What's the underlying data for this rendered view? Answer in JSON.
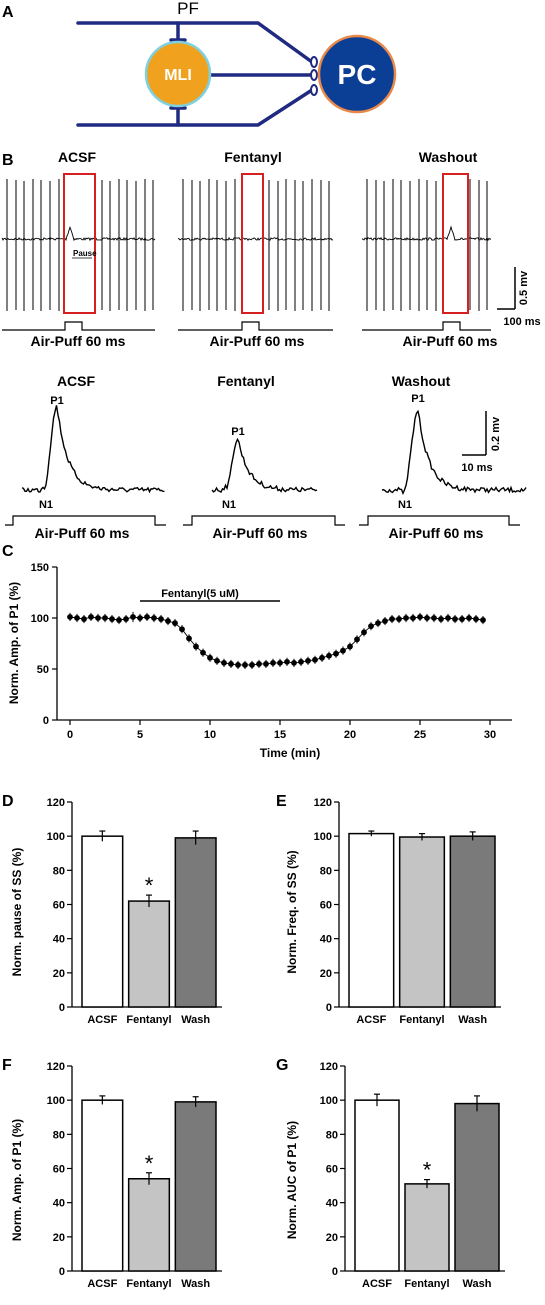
{
  "panels": {
    "a": "A",
    "b": "B",
    "c": "C",
    "d": "D",
    "e": "E",
    "f": "F",
    "g": "G"
  },
  "schematic": {
    "pf": "PF",
    "mli": "MLI",
    "pc": "PC",
    "colors": {
      "fiber": "#1f2a80",
      "mli_fill": "#f0a21f",
      "mli_edge": "#7fd1e0",
      "pc_fill": "#0b3f96",
      "pc_edge": "#e8894a"
    }
  },
  "traces": {
    "conditions": [
      "ACSF",
      "Fentanyl",
      "Washout"
    ],
    "pause": "Pause",
    "air_puff": "Air-Puff  60 ms",
    "scale_mv": "0.5 mv",
    "scale_ms": "100 ms",
    "p1": "P1",
    "n1": "N1",
    "scale2_mv": "0.2 mv",
    "scale2_ms": "10 ms",
    "highlight_color": "#d62020"
  },
  "chart_data": [
    {
      "panel": "C",
      "type": "scatter",
      "xlabel": "Time (min)",
      "ylabel": "Norm. Amp. of P1 (%)",
      "xlim": [
        0,
        30
      ],
      "ylim": [
        0,
        150
      ],
      "xticks": [
        "0",
        "5",
        "10",
        "15",
        "20",
        "25",
        "30"
      ],
      "yticks": [
        "0",
        "50",
        "100",
        "150"
      ],
      "bar_label": "Fentanyl(5 uM)",
      "drug_window": [
        5,
        15
      ],
      "x": [
        0,
        0.5,
        1,
        1.5,
        2,
        2.5,
        3,
        3.5,
        4,
        4.5,
        5,
        5.5,
        6,
        6.5,
        7,
        7.5,
        8,
        8.5,
        9,
        9.5,
        10,
        10.5,
        11,
        11.5,
        12,
        12.5,
        13,
        13.5,
        14,
        14.5,
        15,
        15.5,
        16,
        16.5,
        17,
        17.5,
        18,
        18.5,
        19,
        19.5,
        20,
        20.5,
        21,
        21.5,
        22,
        22.5,
        23,
        23.5,
        24,
        24.5,
        25,
        25.5,
        26,
        26.5,
        27,
        27.5,
        28,
        28.5,
        29,
        29.5
      ],
      "values": [
        101,
        100,
        99,
        101,
        100,
        100,
        99,
        98,
        99,
        101,
        100,
        101,
        100,
        99,
        97,
        95,
        89,
        80,
        72,
        66,
        61,
        58,
        56,
        55,
        54,
        54,
        54,
        55,
        55,
        56,
        56,
        57,
        56,
        57,
        58,
        59,
        61,
        63,
        65,
        68,
        72,
        79,
        86,
        92,
        95,
        97,
        99,
        99,
        100,
        100,
        101,
        100,
        100,
        99,
        100,
        99,
        99,
        100,
        99,
        98
      ],
      "errors": [
        4,
        4,
        4,
        4,
        4,
        4,
        4,
        4,
        4,
        5,
        4,
        4,
        4,
        4,
        4,
        4,
        4,
        4,
        4,
        4,
        4,
        4,
        4,
        4,
        4,
        4,
        4,
        4,
        4,
        4,
        4,
        4,
        4,
        4,
        4,
        4,
        4,
        4,
        4,
        4,
        4,
        4,
        4,
        4,
        4,
        4,
        4,
        4,
        4,
        4,
        4,
        4,
        4,
        4,
        4,
        4,
        4,
        4,
        4,
        4
      ]
    },
    {
      "panel": "D",
      "type": "bar",
      "categories": [
        "ACSF",
        "Fentanyl",
        "Wash"
      ],
      "values": [
        100,
        62,
        99
      ],
      "errors": [
        3,
        3.5,
        4
      ],
      "significant": [
        false,
        true,
        false
      ],
      "ylabel": "Norm. pause of SS (%)",
      "ylim": [
        0,
        120
      ],
      "yticks": [
        "0",
        "20",
        "40",
        "60",
        "80",
        "100",
        "120"
      ]
    },
    {
      "panel": "E",
      "type": "bar",
      "categories": [
        "ACSF",
        "Fentanyl",
        "Wash"
      ],
      "values": [
        101.5,
        99.5,
        100
      ],
      "errors": [
        1.5,
        2,
        2.5
      ],
      "significant": [
        false,
        false,
        false
      ],
      "ylabel": "Norm. Freq. of SS (%)",
      "ylim": [
        0,
        120
      ],
      "yticks": [
        "0",
        "20",
        "40",
        "60",
        "80",
        "100",
        "120"
      ]
    },
    {
      "panel": "F",
      "type": "bar",
      "categories": [
        "ACSF",
        "Fentanyl",
        "Wash"
      ],
      "values": [
        100,
        54,
        99
      ],
      "errors": [
        2.5,
        3.5,
        3
      ],
      "significant": [
        false,
        true,
        false
      ],
      "ylabel": "Norm. Amp. of P1 (%)",
      "ylim": [
        0,
        120
      ],
      "yticks": [
        "0",
        "20",
        "40",
        "60",
        "80",
        "100",
        "120"
      ]
    },
    {
      "panel": "G",
      "type": "bar",
      "categories": [
        "ACSF",
        "Fentanyl",
        "Wash"
      ],
      "values": [
        100,
        51,
        98
      ],
      "errors": [
        3.5,
        2.5,
        4.5
      ],
      "significant": [
        false,
        true,
        false
      ],
      "ylabel": "Norm. AUC of P1 (%)",
      "ylim": [
        0,
        120
      ],
      "yticks": [
        "0",
        "20",
        "40",
        "60",
        "80",
        "100",
        "120"
      ]
    }
  ],
  "bar_colors": [
    "#ffffff",
    "#c4c4c4",
    "#7a7a7a"
  ],
  "significance_mark": "*"
}
